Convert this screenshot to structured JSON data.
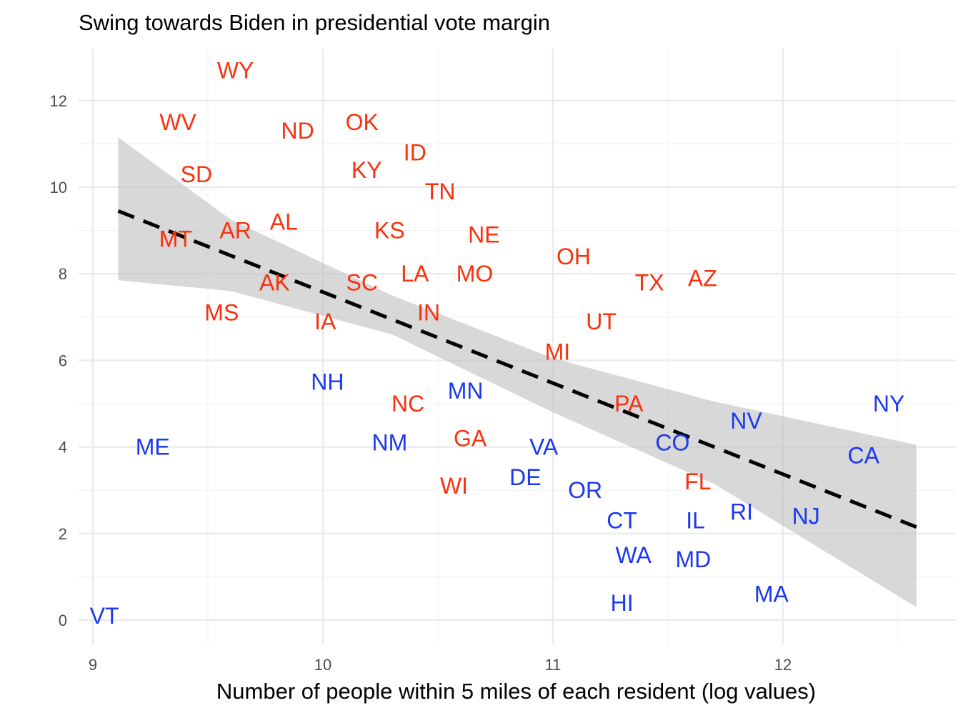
{
  "chart_data": {
    "type": "scatter",
    "title": "Swing towards Biden in presidential vote margin",
    "xlabel": "Number of people within 5 miles of each resident (log values)",
    "ylabel": "",
    "xlim": [
      8.95,
      12.75
    ],
    "ylim": [
      -0.6,
      13.0
    ],
    "xticks": [
      9,
      10,
      11,
      12
    ],
    "yticks": [
      0,
      2,
      4,
      6,
      8,
      10,
      12
    ],
    "grid": true,
    "colors": {
      "republican": "#f8310f",
      "democrat": "#1c38f0",
      "band": "#bebebe",
      "trend": "#000000"
    },
    "points": [
      {
        "label": "WY",
        "x": 9.62,
        "y": 12.7,
        "party": "R"
      },
      {
        "label": "WV",
        "x": 9.37,
        "y": 11.5,
        "party": "R"
      },
      {
        "label": "ND",
        "x": 9.89,
        "y": 11.3,
        "party": "R"
      },
      {
        "label": "OK",
        "x": 10.17,
        "y": 11.5,
        "party": "R"
      },
      {
        "label": "SD",
        "x": 9.45,
        "y": 10.3,
        "party": "R"
      },
      {
        "label": "KY",
        "x": 10.19,
        "y": 10.4,
        "party": "R"
      },
      {
        "label": "ID",
        "x": 10.4,
        "y": 10.8,
        "party": "R"
      },
      {
        "label": "TN",
        "x": 10.51,
        "y": 9.9,
        "party": "R"
      },
      {
        "label": "MT",
        "x": 9.36,
        "y": 8.8,
        "party": "R"
      },
      {
        "label": "AR",
        "x": 9.62,
        "y": 9.0,
        "party": "R"
      },
      {
        "label": "AL",
        "x": 9.83,
        "y": 9.2,
        "party": "R"
      },
      {
        "label": "KS",
        "x": 10.29,
        "y": 9.0,
        "party": "R"
      },
      {
        "label": "NE",
        "x": 10.7,
        "y": 8.9,
        "party": "R"
      },
      {
        "label": "OH",
        "x": 11.09,
        "y": 8.4,
        "party": "R"
      },
      {
        "label": "AK",
        "x": 9.79,
        "y": 7.8,
        "party": "R"
      },
      {
        "label": "SC",
        "x": 10.17,
        "y": 7.8,
        "party": "R"
      },
      {
        "label": "LA",
        "x": 10.4,
        "y": 8.0,
        "party": "R"
      },
      {
        "label": "MO",
        "x": 10.66,
        "y": 8.0,
        "party": "R"
      },
      {
        "label": "TX",
        "x": 11.42,
        "y": 7.8,
        "party": "R"
      },
      {
        "label": "AZ",
        "x": 11.65,
        "y": 7.9,
        "party": "R"
      },
      {
        "label": "MS",
        "x": 9.56,
        "y": 7.1,
        "party": "R"
      },
      {
        "label": "IA",
        "x": 10.01,
        "y": 6.9,
        "party": "R"
      },
      {
        "label": "IN",
        "x": 10.46,
        "y": 7.1,
        "party": "R"
      },
      {
        "label": "UT",
        "x": 11.21,
        "y": 6.9,
        "party": "R"
      },
      {
        "label": "MI",
        "x": 11.02,
        "y": 6.2,
        "party": "R"
      },
      {
        "label": "NC",
        "x": 10.37,
        "y": 5.0,
        "party": "R"
      },
      {
        "label": "PA",
        "x": 11.33,
        "y": 5.0,
        "party": "R"
      },
      {
        "label": "GA",
        "x": 10.64,
        "y": 4.2,
        "party": "R"
      },
      {
        "label": "WI",
        "x": 10.57,
        "y": 3.1,
        "party": "R"
      },
      {
        "label": "FL",
        "x": 11.63,
        "y": 3.2,
        "party": "R"
      },
      {
        "label": "NH",
        "x": 10.02,
        "y": 5.5,
        "party": "D"
      },
      {
        "label": "MN",
        "x": 10.62,
        "y": 5.3,
        "party": "D"
      },
      {
        "label": "NY",
        "x": 12.46,
        "y": 5.0,
        "party": "D"
      },
      {
        "label": "NV",
        "x": 11.84,
        "y": 4.6,
        "party": "D"
      },
      {
        "label": "ME",
        "x": 9.26,
        "y": 4.0,
        "party": "D"
      },
      {
        "label": "NM",
        "x": 10.29,
        "y": 4.1,
        "party": "D"
      },
      {
        "label": "VA",
        "x": 10.96,
        "y": 4.0,
        "party": "D"
      },
      {
        "label": "CO",
        "x": 11.52,
        "y": 4.1,
        "party": "D"
      },
      {
        "label": "CA",
        "x": 12.35,
        "y": 3.8,
        "party": "D"
      },
      {
        "label": "DE",
        "x": 10.88,
        "y": 3.3,
        "party": "D"
      },
      {
        "label": "OR",
        "x": 11.14,
        "y": 3.0,
        "party": "D"
      },
      {
        "label": "RI",
        "x": 11.82,
        "y": 2.5,
        "party": "D"
      },
      {
        "label": "CT",
        "x": 11.3,
        "y": 2.3,
        "party": "D"
      },
      {
        "label": "IL",
        "x": 11.62,
        "y": 2.3,
        "party": "D"
      },
      {
        "label": "NJ",
        "x": 12.1,
        "y": 2.4,
        "party": "D"
      },
      {
        "label": "WA",
        "x": 11.35,
        "y": 1.5,
        "party": "D"
      },
      {
        "label": "MD",
        "x": 11.61,
        "y": 1.4,
        "party": "D"
      },
      {
        "label": "MA",
        "x": 11.95,
        "y": 0.6,
        "party": "D"
      },
      {
        "label": "HI",
        "x": 11.3,
        "y": 0.4,
        "party": "D"
      },
      {
        "label": "VT",
        "x": 9.05,
        "y": 0.1,
        "party": "D"
      }
    ],
    "trend": {
      "style": "dashed",
      "start": [
        9.11,
        9.45
      ],
      "end": [
        12.58,
        2.15
      ]
    },
    "confidence_band": {
      "upper": [
        [
          9.11,
          11.15
        ],
        [
          12.58,
          4.05
        ]
      ],
      "upper_mid": [
        [
          9.6,
          9.25
        ],
        [
          10.3,
          7.5
        ],
        [
          11.0,
          6.05
        ],
        [
          11.7,
          5.05
        ]
      ],
      "lower_mid": [
        [
          11.7,
          3.15
        ],
        [
          11.0,
          4.8
        ],
        [
          10.3,
          6.6
        ],
        [
          9.6,
          7.6
        ]
      ],
      "lower": [
        [
          12.58,
          0.3
        ],
        [
          9.11,
          7.85
        ]
      ]
    }
  }
}
